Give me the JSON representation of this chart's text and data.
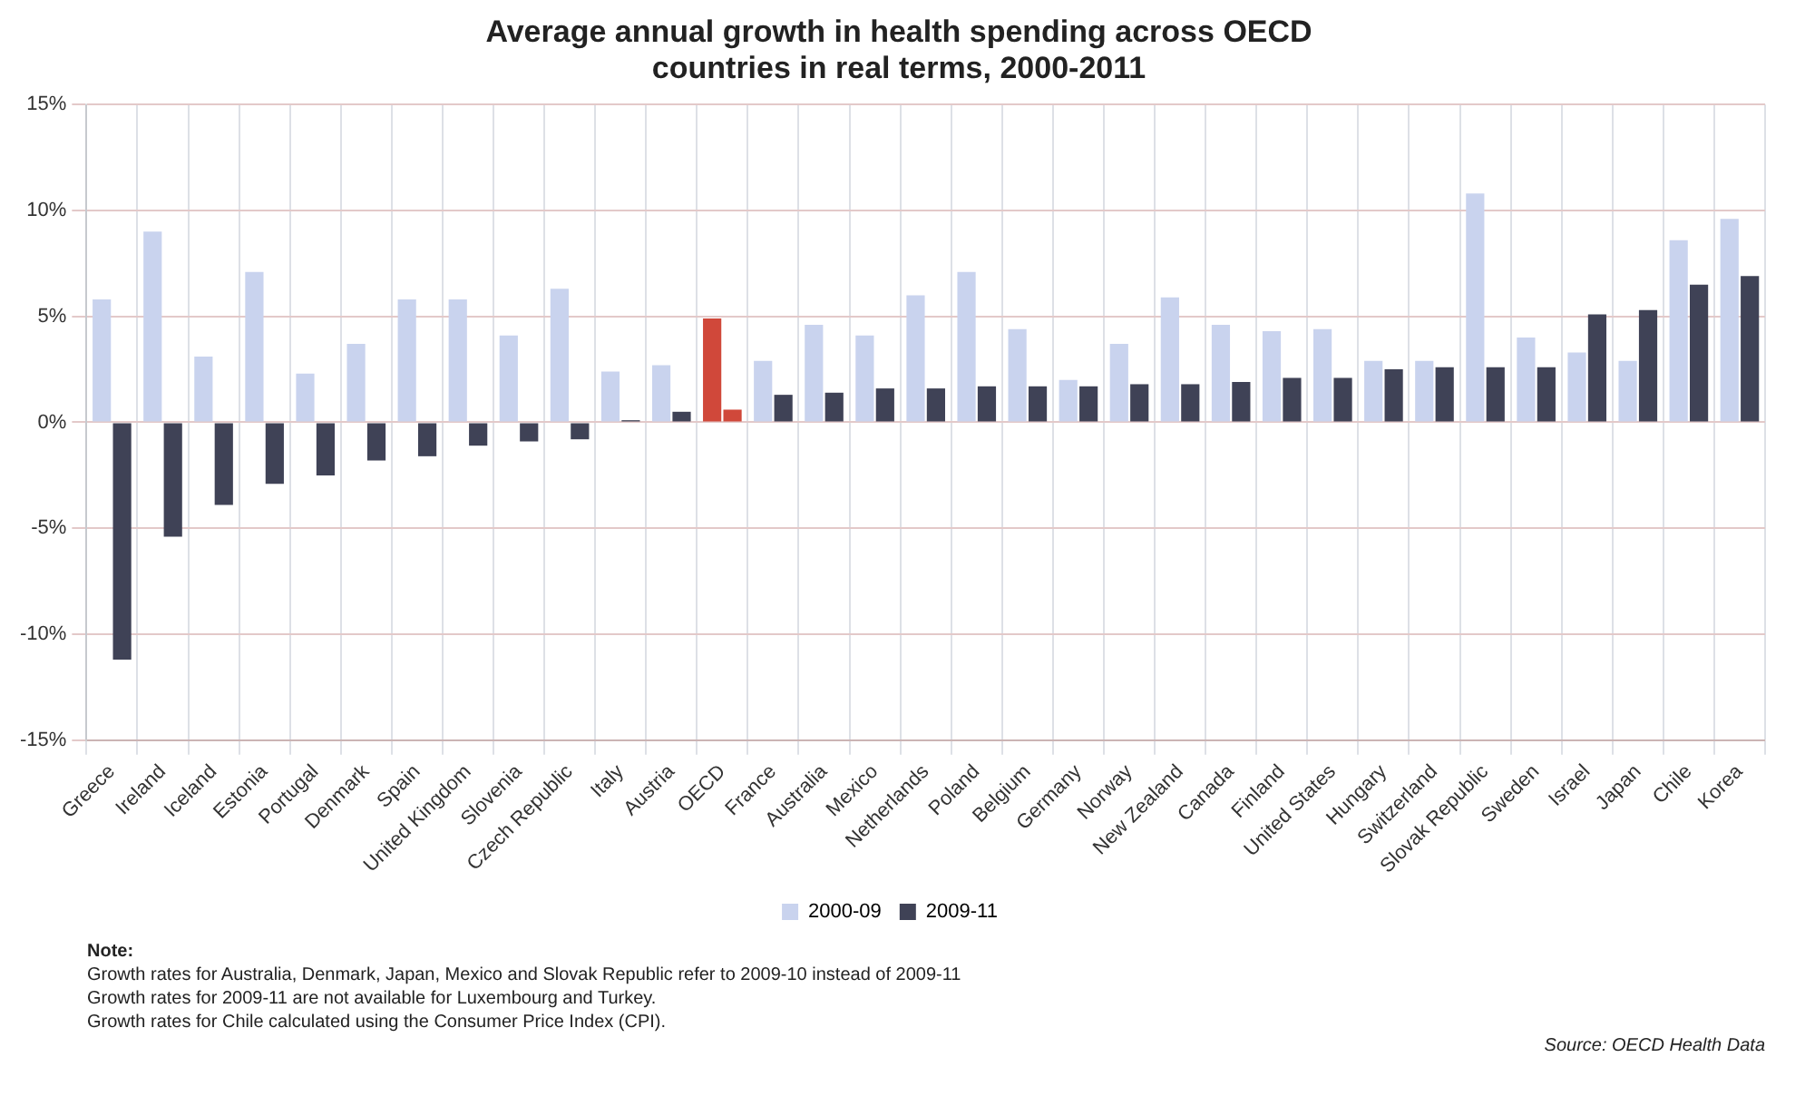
{
  "chart_data": {
    "type": "bar",
    "title": "Average annual growth in health spending across OECD countries in real terms, 2000-2011",
    "categories": [
      "Greece",
      "Ireland",
      "Iceland",
      "Estonia",
      "Portugal",
      "Denmark",
      "Spain",
      "United Kingdom",
      "Slovenia",
      "Czech Republic",
      "Italy",
      "Austria",
      "OECD",
      "France",
      "Australia",
      "Mexico",
      "Netherlands",
      "Poland",
      "Belgium",
      "Germany",
      "Norway",
      "New Zealand",
      "Canada",
      "Finland",
      "United States",
      "Hungary",
      "Switzerland",
      "Slovak Republic",
      "Sweden",
      "Israel",
      "Japan",
      "Chile",
      "Korea"
    ],
    "series": [
      {
        "name": "2000-09",
        "color": "#c9d3ee",
        "colors": [
          "#c9d3ee",
          "#c9d3ee",
          "#c9d3ee",
          "#c9d3ee",
          "#c9d3ee",
          "#c9d3ee",
          "#c9d3ee",
          "#c9d3ee",
          "#c9d3ee",
          "#c9d3ee",
          "#c9d3ee",
          "#c9d3ee",
          "#d0483a",
          "#c9d3ee",
          "#c9d3ee",
          "#c9d3ee",
          "#c9d3ee",
          "#c9d3ee",
          "#c9d3ee",
          "#c9d3ee",
          "#c9d3ee",
          "#c9d3ee",
          "#c9d3ee",
          "#c9d3ee",
          "#c9d3ee",
          "#c9d3ee",
          "#c9d3ee",
          "#c9d3ee",
          "#c9d3ee",
          "#c9d3ee",
          "#c9d3ee",
          "#c9d3ee",
          "#c9d3ee"
        ],
        "values": [
          5.8,
          9.0,
          3.1,
          7.1,
          2.3,
          3.7,
          5.8,
          5.8,
          4.1,
          6.3,
          2.4,
          2.7,
          4.9,
          2.9,
          4.6,
          4.1,
          6.0,
          7.1,
          4.4,
          2.0,
          3.7,
          5.9,
          4.6,
          4.3,
          4.4,
          2.9,
          2.9,
          10.8,
          4.0,
          3.3,
          2.9,
          8.6,
          9.6
        ]
      },
      {
        "name": "2009-11",
        "color": "#3f4256",
        "colors": [
          "#3f4256",
          "#3f4256",
          "#3f4256",
          "#3f4256",
          "#3f4256",
          "#3f4256",
          "#3f4256",
          "#3f4256",
          "#3f4256",
          "#3f4256",
          "#3f4256",
          "#3f4256",
          "#d0483a",
          "#3f4256",
          "#3f4256",
          "#3f4256",
          "#3f4256",
          "#3f4256",
          "#3f4256",
          "#3f4256",
          "#3f4256",
          "#3f4256",
          "#3f4256",
          "#3f4256",
          "#3f4256",
          "#3f4256",
          "#3f4256",
          "#3f4256",
          "#3f4256",
          "#3f4256",
          "#3f4256",
          "#3f4256",
          "#3f4256"
        ],
        "values": [
          -11.2,
          -5.4,
          -3.9,
          -2.9,
          -2.5,
          -1.8,
          -1.6,
          -1.1,
          -0.9,
          -0.8,
          0.1,
          0.5,
          0.6,
          1.3,
          1.4,
          1.6,
          1.6,
          1.7,
          1.7,
          1.7,
          1.8,
          1.8,
          1.9,
          2.1,
          2.1,
          2.5,
          2.6,
          2.6,
          2.6,
          5.1,
          5.3,
          6.5,
          6.9
        ]
      }
    ],
    "ylim": [
      -15,
      15
    ],
    "yticks": [
      {
        "value": -15,
        "label": "-15%"
      },
      {
        "value": -10,
        "label": "-10%"
      },
      {
        "value": -5,
        "label": "-5%"
      },
      {
        "value": 0,
        "label": "0%"
      },
      {
        "value": 5,
        "label": "5%"
      },
      {
        "value": 10,
        "label": "10%"
      },
      {
        "value": 15,
        "label": "15%"
      }
    ],
    "grid": true,
    "legend": "bottom",
    "annotations": [
      "Note:",
      "Growth rates for Australia, Denmark, Japan, Mexico and Slovak Republic refer to 2009-10 instead of 2009-11",
      "Growth rates for 2009-11 are not available for Luxembourg and Turkey.",
      "Growth rates for Chile calculated using the Consumer Price Index (CPI).",
      "Source: OECD Health Data"
    ]
  }
}
